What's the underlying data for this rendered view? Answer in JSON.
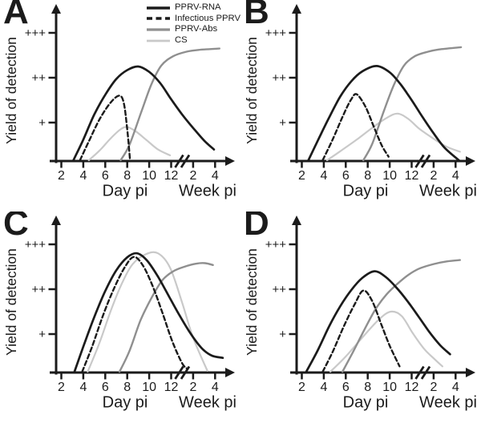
{
  "figure": {
    "background": "#ffffff",
    "axis_color": "#1b1b1b",
    "y_axis_label": "Yield of detection",
    "x_axis_day_label": "Day pi",
    "x_axis_week_label": "Week pi",
    "y_ticks": [
      {
        "label": "+",
        "value": 1
      },
      {
        "label": "++",
        "value": 2
      },
      {
        "label": "+++",
        "value": 3
      }
    ],
    "day_ticks": [
      {
        "label": "2",
        "t": 2
      },
      {
        "label": "4",
        "t": 4
      },
      {
        "label": "6",
        "t": 6
      },
      {
        "label": "8",
        "t": 8
      },
      {
        "label": "10",
        "t": 10
      },
      {
        "label": "12",
        "t": 12
      }
    ],
    "week_ticks": [
      {
        "label": "2",
        "t": 14
      },
      {
        "label": "4",
        "t": 16
      }
    ],
    "axis_break_note": "broken x-axis between day 12 pi and week 2 pi"
  },
  "legend": {
    "items": [
      {
        "label": "PPRV-RNA",
        "style": "solid-black",
        "color": "#1b1b1b"
      },
      {
        "label": "Infectious PPRV",
        "style": "dashed-black",
        "color": "#1b1b1b"
      },
      {
        "label": "PPRV-Abs",
        "style": "solid-gray",
        "color": "#8f8f8f"
      },
      {
        "label": "CS",
        "style": "solid-lightgray",
        "color": "#c9c9c9"
      }
    ]
  },
  "chart_data": [
    {
      "type": "line",
      "panel": "A",
      "ylabel": "Yield of detection",
      "x_units": "t scale: 2-12 = days pi; 14 = week 2 pi; 16 = week 4 pi (axis break near t=13)",
      "y_units": "detection level: 1 = '+', 2 = '++', 3 = '+++', 0.16 = baseline",
      "series": [
        {
          "name": "CS",
          "color": "#c9c9c9",
          "width": 2.2,
          "dash": "",
          "points": [
            [
              4.5,
              0.16
            ],
            [
              5.5,
              0.38
            ],
            [
              6.5,
              0.65
            ],
            [
              7.4,
              0.85
            ],
            [
              8.0,
              0.9
            ],
            [
              8.8,
              0.8
            ],
            [
              9.8,
              0.6
            ],
            [
              10.8,
              0.4
            ],
            [
              11.9,
              0.27
            ]
          ]
        },
        {
          "name": "PPRV-Abs",
          "color": "#8f8f8f",
          "width": 2.4,
          "dash": "",
          "points": [
            [
              7.4,
              0.16
            ],
            [
              8.2,
              0.5
            ],
            [
              9.3,
              1.25
            ],
            [
              10.2,
              1.85
            ],
            [
              11.1,
              2.27
            ],
            [
              12.2,
              2.48
            ],
            [
              13.4,
              2.58
            ],
            [
              14.5,
              2.62
            ],
            [
              16.4,
              2.65
            ]
          ]
        },
        {
          "name": "PPRV-RNA",
          "color": "#1b1b1b",
          "width": 2.7,
          "dash": "",
          "points": [
            [
              3.1,
              0.16
            ],
            [
              4,
              0.62
            ],
            [
              5,
              1.18
            ],
            [
              6,
              1.62
            ],
            [
              7,
              1.97
            ],
            [
              8,
              2.17
            ],
            [
              9,
              2.25
            ],
            [
              10,
              2.13
            ],
            [
              11,
              1.88
            ],
            [
              12,
              1.52
            ],
            [
              13,
              1.18
            ],
            [
              14,
              0.88
            ],
            [
              15,
              0.6
            ],
            [
              15.9,
              0.4
            ]
          ]
        },
        {
          "name": "Infectious PPRV",
          "color": "#1b1b1b",
          "width": 2.4,
          "dash": "5.5 3.5",
          "points": [
            [
              3.7,
              0.16
            ],
            [
              4.5,
              0.58
            ],
            [
              5.5,
              1.08
            ],
            [
              6.5,
              1.45
            ],
            [
              7.3,
              1.6
            ],
            [
              7.7,
              1.42
            ],
            [
              8.0,
              0.85
            ],
            [
              8.25,
              0.18
            ]
          ]
        }
      ]
    },
    {
      "type": "line",
      "panel": "B",
      "ylabel": "Yield of detection",
      "x_units": "t scale: 2-12 = days pi; 14 = week 2 pi; 16 = week 4 pi (axis break near t=13)",
      "y_units": "detection level: 1 = '+', 2 = '++', 3 = '+++', 0.16 = baseline",
      "series": [
        {
          "name": "CS",
          "color": "#c9c9c9",
          "width": 2.2,
          "dash": "",
          "points": [
            [
              4.3,
              0.16
            ],
            [
              5.5,
              0.36
            ],
            [
              7,
              0.62
            ],
            [
              8.5,
              0.9
            ],
            [
              9.7,
              1.1
            ],
            [
              10.7,
              1.2
            ],
            [
              11.7,
              1.08
            ],
            [
              12.7,
              0.86
            ],
            [
              14,
              0.64
            ],
            [
              15.2,
              0.46
            ],
            [
              16.4,
              0.35
            ]
          ]
        },
        {
          "name": "PPRV-Abs",
          "color": "#8f8f8f",
          "width": 2.4,
          "dash": "",
          "points": [
            [
              7.6,
              0.16
            ],
            [
              8.4,
              0.52
            ],
            [
              9.5,
              1.28
            ],
            [
              10.4,
              1.85
            ],
            [
              11.3,
              2.27
            ],
            [
              12.3,
              2.48
            ],
            [
              13.5,
              2.58
            ],
            [
              14.5,
              2.63
            ],
            [
              16.5,
              2.68
            ]
          ]
        },
        {
          "name": "PPRV-RNA",
          "color": "#1b1b1b",
          "width": 2.7,
          "dash": "",
          "points": [
            [
              2.6,
              0.16
            ],
            [
              3.5,
              0.62
            ],
            [
              4.5,
              1.12
            ],
            [
              5.5,
              1.58
            ],
            [
              6.5,
              1.92
            ],
            [
              7.5,
              2.14
            ],
            [
              8.8,
              2.26
            ],
            [
              10,
              2.12
            ],
            [
              11,
              1.85
            ],
            [
              12,
              1.5
            ],
            [
              13,
              1.12
            ],
            [
              14,
              0.76
            ],
            [
              15,
              0.44
            ],
            [
              16.3,
              0.16
            ]
          ]
        },
        {
          "name": "Infectious PPRV",
          "color": "#1b1b1b",
          "width": 2.4,
          "dash": "5.5 3.5",
          "points": [
            [
              3.9,
              0.16
            ],
            [
              4.8,
              0.62
            ],
            [
              5.8,
              1.18
            ],
            [
              6.5,
              1.52
            ],
            [
              7.0,
              1.63
            ],
            [
              7.8,
              1.35
            ],
            [
              8.6,
              0.88
            ],
            [
              9.3,
              0.48
            ],
            [
              9.9,
              0.24
            ]
          ]
        }
      ]
    },
    {
      "type": "line",
      "panel": "C",
      "ylabel": "Yield of detection",
      "x_units": "t scale: 2-12 = days pi; 14 = week 2 pi; 16 = week 4 pi (axis break near t=13)",
      "y_units": "detection level: 1 = '+', 2 = '++', 3 = '+++', 0.16 = baseline",
      "series": [
        {
          "name": "CS",
          "color": "#c9c9c9",
          "width": 2.2,
          "dash": "",
          "points": [
            [
              4.4,
              0.16
            ],
            [
              5.5,
              0.82
            ],
            [
              6.5,
              1.52
            ],
            [
              7.5,
              2.12
            ],
            [
              8.5,
              2.56
            ],
            [
              9.7,
              2.78
            ],
            [
              10.8,
              2.8
            ],
            [
              11.9,
              2.48
            ],
            [
              13,
              1.7
            ],
            [
              14,
              0.92
            ],
            [
              15.3,
              0.18
            ]
          ]
        },
        {
          "name": "PPRV-Abs",
          "color": "#8f8f8f",
          "width": 2.4,
          "dash": "",
          "points": [
            [
              7.3,
              0.16
            ],
            [
              8.2,
              0.62
            ],
            [
              9.2,
              1.3
            ],
            [
              10.2,
              1.8
            ],
            [
              11.2,
              2.2
            ],
            [
              12.2,
              2.4
            ],
            [
              13.2,
              2.5
            ],
            [
              14.3,
              2.57
            ],
            [
              15.1,
              2.58
            ],
            [
              15.8,
              2.54
            ]
          ]
        },
        {
          "name": "PPRV-RNA",
          "color": "#1b1b1b",
          "width": 2.7,
          "dash": "",
          "points": [
            [
              3.2,
              0.16
            ],
            [
              4,
              0.72
            ],
            [
              5,
              1.38
            ],
            [
              6,
              1.96
            ],
            [
              7,
              2.42
            ],
            [
              8,
              2.71
            ],
            [
              8.9,
              2.8
            ],
            [
              9.8,
              2.64
            ],
            [
              10.8,
              2.28
            ],
            [
              11.8,
              1.84
            ],
            [
              12.8,
              1.4
            ],
            [
              13.8,
              1.0
            ],
            [
              14.8,
              0.68
            ],
            [
              15.7,
              0.52
            ],
            [
              16.7,
              0.47
            ]
          ]
        },
        {
          "name": "Infectious PPRV",
          "color": "#1b1b1b",
          "width": 2.4,
          "dash": "5.5 3.5",
          "points": [
            [
              3.9,
              0.16
            ],
            [
              4.8,
              0.72
            ],
            [
              5.8,
              1.42
            ],
            [
              6.8,
              2.02
            ],
            [
              7.8,
              2.5
            ],
            [
              8.6,
              2.72
            ],
            [
              9.4,
              2.54
            ],
            [
              10.3,
              2.08
            ],
            [
              11.2,
              1.48
            ],
            [
              12.1,
              0.84
            ],
            [
              13.0,
              0.35
            ],
            [
              13.5,
              0.22
            ]
          ]
        }
      ]
    },
    {
      "type": "line",
      "panel": "D",
      "ylabel": "Yield of detection",
      "x_units": "t scale: 2-12 = days pi; 14 = week 2 pi; 16 = week 4 pi (axis break near t=13)",
      "y_units": "detection level: 1 = '+', 2 = '++', 3 = '+++', 0.16 = baseline",
      "series": [
        {
          "name": "CS",
          "color": "#c9c9c9",
          "width": 2.2,
          "dash": "",
          "points": [
            [
              4.6,
              0.16
            ],
            [
              6,
              0.5
            ],
            [
              7.5,
              0.92
            ],
            [
              9,
              1.32
            ],
            [
              10.1,
              1.5
            ],
            [
              11.1,
              1.4
            ],
            [
              12.1,
              1.02
            ],
            [
              13.1,
              0.68
            ],
            [
              14,
              0.46
            ],
            [
              14.8,
              0.28
            ]
          ]
        },
        {
          "name": "PPRV-Abs",
          "color": "#8f8f8f",
          "width": 2.4,
          "dash": "",
          "points": [
            [
              5.7,
              0.16
            ],
            [
              6.7,
              0.62
            ],
            [
              7.7,
              1.1
            ],
            [
              8.7,
              1.55
            ],
            [
              9.7,
              1.88
            ],
            [
              10.7,
              2.12
            ],
            [
              11.7,
              2.32
            ],
            [
              12.7,
              2.46
            ],
            [
              14,
              2.56
            ],
            [
              15.2,
              2.62
            ],
            [
              16.4,
              2.65
            ]
          ]
        },
        {
          "name": "PPRV-RNA",
          "color": "#1b1b1b",
          "width": 2.7,
          "dash": "",
          "points": [
            [
              2.4,
              0.16
            ],
            [
              3.5,
              0.66
            ],
            [
              4.5,
              1.18
            ],
            [
              5.5,
              1.62
            ],
            [
              6.5,
              1.98
            ],
            [
              7.5,
              2.25
            ],
            [
              8.6,
              2.4
            ],
            [
              9.6,
              2.28
            ],
            [
              10.6,
              2.04
            ],
            [
              11.6,
              1.74
            ],
            [
              12.6,
              1.4
            ],
            [
              13.6,
              1.05
            ],
            [
              14.6,
              0.75
            ],
            [
              15.5,
              0.55
            ]
          ]
        },
        {
          "name": "Infectious PPRV",
          "color": "#1b1b1b",
          "width": 2.4,
          "dash": "5.5 3.5",
          "points": [
            [
              3.9,
              0.16
            ],
            [
              4.8,
              0.6
            ],
            [
              5.8,
              1.16
            ],
            [
              6.8,
              1.66
            ],
            [
              7.6,
              1.97
            ],
            [
              8.4,
              1.74
            ],
            [
              9.2,
              1.24
            ],
            [
              10.0,
              0.74
            ],
            [
              10.9,
              0.28
            ]
          ]
        }
      ]
    }
  ]
}
